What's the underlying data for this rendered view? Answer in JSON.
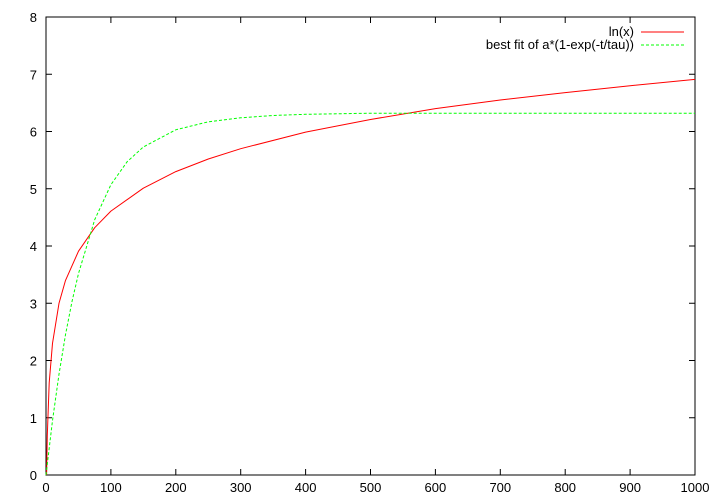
{
  "chart_data": {
    "type": "line",
    "title": "",
    "xlabel": "",
    "ylabel": "",
    "xlim": [
      0,
      1000
    ],
    "ylim": [
      0,
      8
    ],
    "grid": false,
    "legend_position": "top-right",
    "x_ticks": [
      0,
      100,
      200,
      300,
      400,
      500,
      600,
      700,
      800,
      900,
      1000
    ],
    "y_ticks": [
      0,
      1,
      2,
      3,
      4,
      5,
      6,
      7,
      8
    ],
    "series": [
      {
        "name": "ln(x)",
        "color": "#ff0000",
        "dash": "solid",
        "x": [
          1,
          2,
          5,
          10,
          20,
          30,
          50,
          75,
          100,
          150,
          200,
          250,
          300,
          400,
          500,
          600,
          700,
          800,
          900,
          1000
        ],
        "y": [
          0,
          0.69,
          1.61,
          2.3,
          3.0,
          3.4,
          3.91,
          4.32,
          4.61,
          5.01,
          5.3,
          5.52,
          5.7,
          5.99,
          6.21,
          6.4,
          6.55,
          6.68,
          6.8,
          6.91
        ]
      },
      {
        "name": "best fit of a*(1-exp(-t/tau))",
        "color": "#00ff00",
        "dash": "dashed",
        "x": [
          0,
          10,
          20,
          30,
          40,
          50,
          75,
          100,
          125,
          150,
          200,
          250,
          300,
          350,
          400,
          500,
          600,
          700,
          800,
          900,
          1000
        ],
        "y": [
          0,
          0.95,
          1.76,
          2.45,
          3.03,
          3.52,
          4.46,
          5.07,
          5.47,
          5.73,
          6.03,
          6.17,
          6.24,
          6.28,
          6.3,
          6.32,
          6.32,
          6.32,
          6.32,
          6.32,
          6.32
        ]
      }
    ]
  }
}
